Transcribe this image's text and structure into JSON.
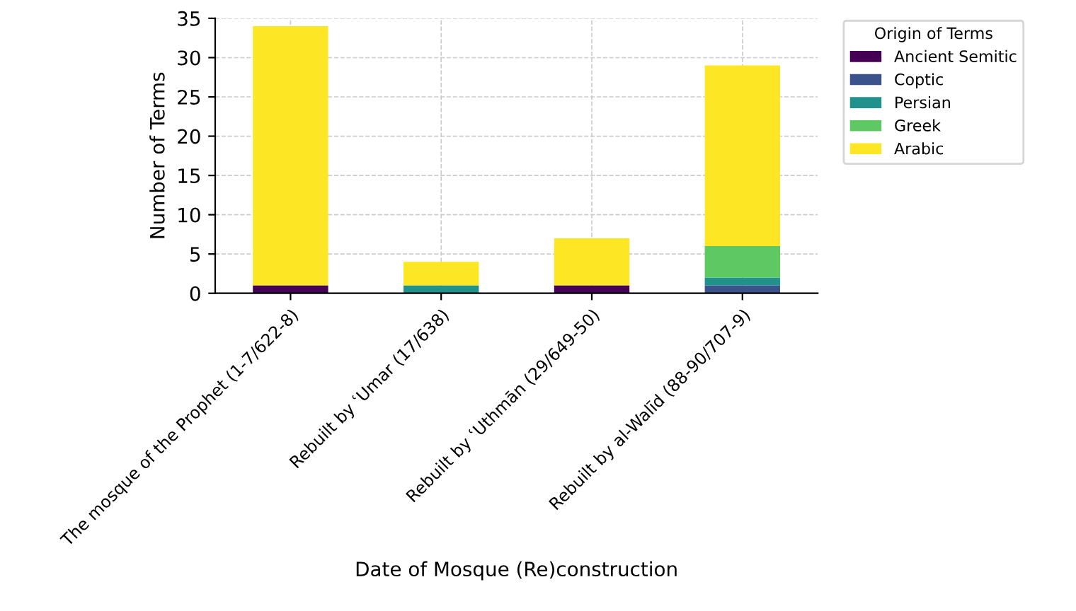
{
  "chart_data": {
    "type": "bar",
    "stacked": true,
    "xlabel": "Date of Mosque (Re)construction",
    "ylabel": "Number of Terms",
    "legend_title": "Origin of Terms",
    "categories": [
      "The mosque of the Prophet (1-7/622-8)",
      "Rebuilt by ʿUmar (17/638)",
      "Rebuilt by ʿUthmān (29/649-50)",
      "Rebuilt by al-Walīd (88-90/707-9)"
    ],
    "series": [
      {
        "name": "Ancient Semitic",
        "color": "#440154",
        "values": [
          1,
          0,
          1,
          0
        ]
      },
      {
        "name": "Coptic",
        "color": "#3b528b",
        "values": [
          0,
          0,
          0,
          1
        ]
      },
      {
        "name": "Persian",
        "color": "#21918c",
        "values": [
          0,
          1,
          0,
          1
        ]
      },
      {
        "name": "Greek",
        "color": "#5ec962",
        "values": [
          0,
          0,
          0,
          4
        ]
      },
      {
        "name": "Arabic",
        "color": "#fde725",
        "values": [
          33,
          3,
          6,
          23
        ]
      }
    ],
    "ylim": [
      0,
      35
    ],
    "yticks": [
      0,
      5,
      10,
      15,
      20,
      25,
      30,
      35
    ],
    "grid": true,
    "legend": "top right"
  }
}
